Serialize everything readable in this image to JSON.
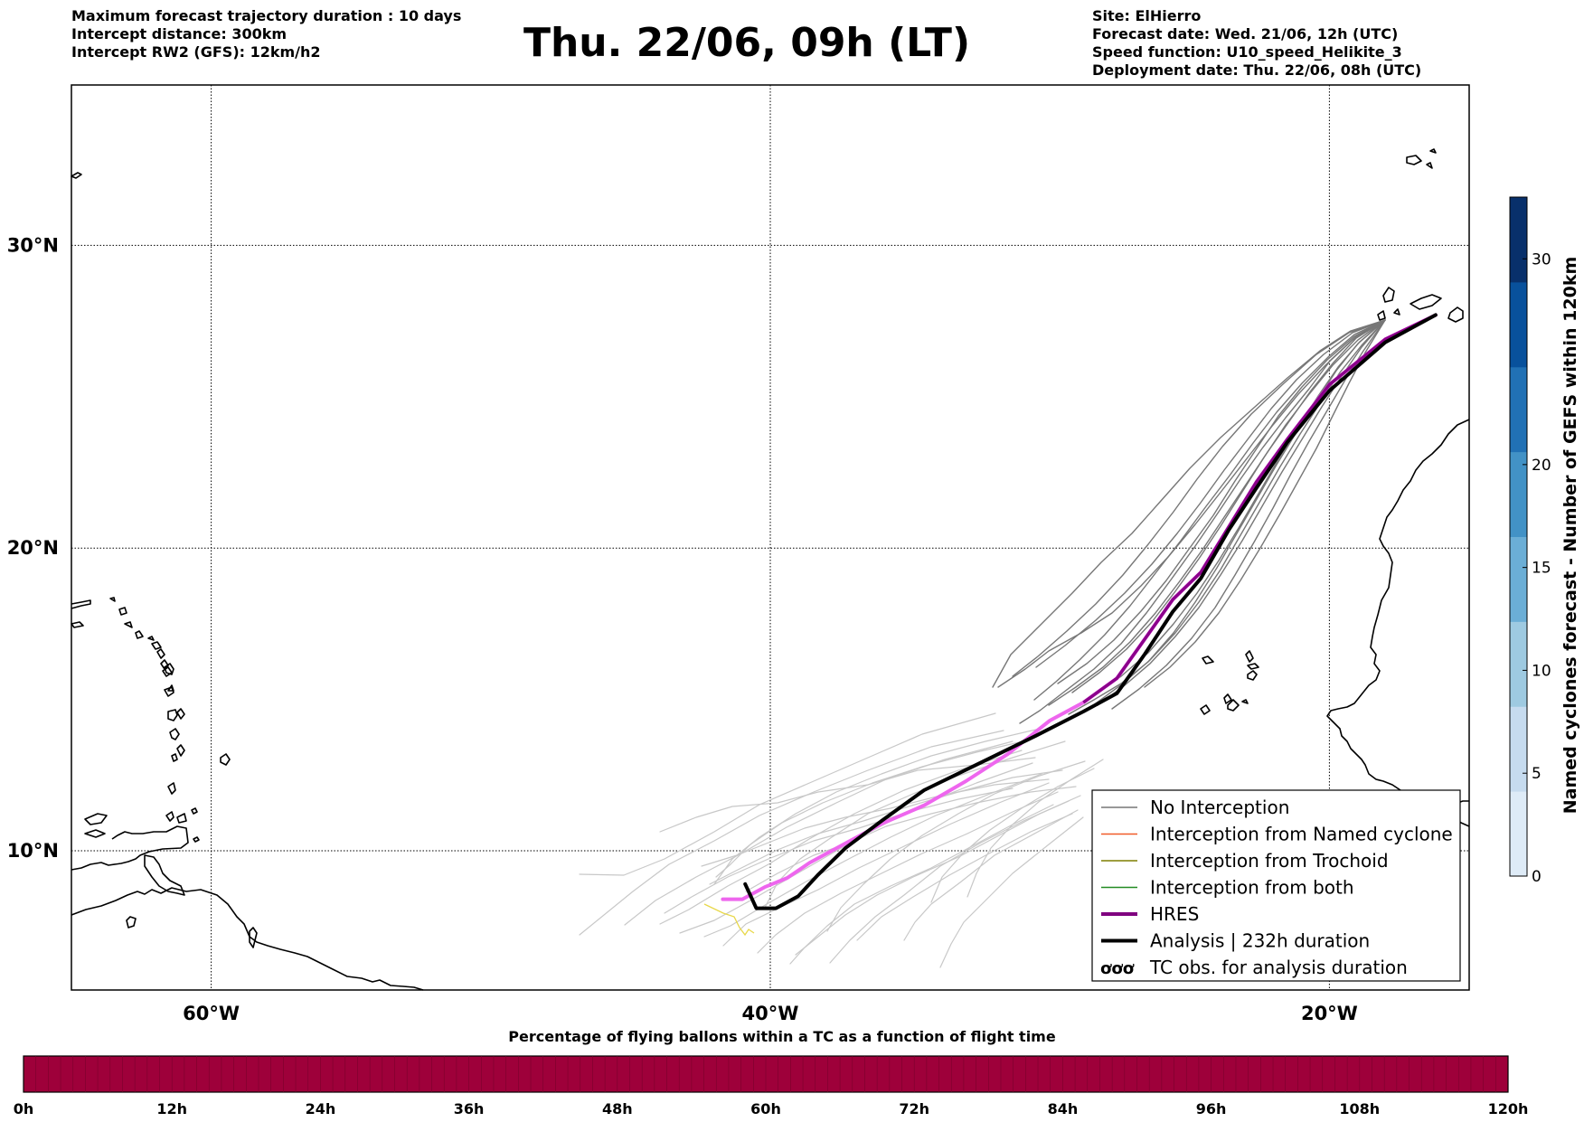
{
  "header": {
    "left_lines": [
      "Maximum forecast trajectory duration : 10 days",
      "Intercept distance: 300km",
      "Intercept RW2 (GFS):  12km/h2"
    ],
    "title": "Thu. 22/06, 09h (LT)",
    "right_lines": [
      "Site: ElHierro",
      "Forecast date: Wed. 21/06, 12h (UTC)",
      "Speed function: U10_speed_Helikite_3",
      "Deployment date: Thu. 22/06, 08h (UTC)"
    ]
  },
  "map": {
    "lat_labels": [
      "30°N",
      "20°N",
      "10°N"
    ],
    "lon_labels": [
      "60°W",
      "40°W",
      "20°W"
    ],
    "lat_values": [
      30,
      20,
      10
    ],
    "lon_values": [
      -60,
      -40,
      -20
    ],
    "extent": {
      "lon_min": -65,
      "lon_max": -15,
      "lat_min": 5.4,
      "lat_max": 35.3
    },
    "colors": {
      "no_interception": "#777777",
      "ensemble_light": "#c8c8c8",
      "hres": "#ee66ee",
      "hres_dark": "#8b008b",
      "analysis": "#000000",
      "yellow": "#e8d84a"
    },
    "analysis_track": [
      [
        -16.2,
        27.7
      ],
      [
        -18,
        26.8
      ],
      [
        -20,
        25.2
      ],
      [
        -21.5,
        23.5
      ],
      [
        -22.6,
        22
      ],
      [
        -23.6,
        20.6
      ],
      [
        -24.6,
        19
      ],
      [
        -25.6,
        17.9
      ],
      [
        -26.6,
        16.5
      ],
      [
        -27.6,
        15.2
      ],
      [
        -28.8,
        14.6
      ],
      [
        -30.5,
        13.8
      ],
      [
        -32.5,
        12.9
      ],
      [
        -34.5,
        12
      ],
      [
        -36,
        11
      ],
      [
        -37.3,
        10.1
      ],
      [
        -38.3,
        9.2
      ],
      [
        -39,
        8.5
      ],
      [
        -39.8,
        8.1
      ],
      [
        -40.5,
        8.1
      ],
      [
        -40.7,
        8.5
      ],
      [
        -40.9,
        8.9
      ]
    ],
    "hres_track": [
      [
        -16.2,
        27.7
      ],
      [
        -18,
        26.9
      ],
      [
        -20,
        25.4
      ],
      [
        -21.5,
        23.6
      ],
      [
        -22.6,
        22.2
      ],
      [
        -23.6,
        20.7
      ],
      [
        -24.6,
        19.2
      ],
      [
        -25.6,
        18.3
      ],
      [
        -26.6,
        17
      ],
      [
        -27.6,
        15.7
      ],
      [
        -28.8,
        14.9
      ],
      [
        -30,
        14.3
      ],
      [
        -31.5,
        13.2
      ],
      [
        -33,
        12.3
      ],
      [
        -34.5,
        11.5
      ],
      [
        -36,
        10.9
      ],
      [
        -37.4,
        10.2
      ],
      [
        -38.6,
        9.6
      ],
      [
        -39.4,
        9.1
      ],
      [
        -40.2,
        8.8
      ],
      [
        -41,
        8.4
      ],
      [
        -41.7,
        8.4
      ]
    ]
  },
  "legend": {
    "items": [
      {
        "label": "No Interception",
        "color": "#777777",
        "width": 1.5,
        "kind": "line"
      },
      {
        "label": "Interception from Named cyclone",
        "color": "#f05a28",
        "width": 1.5,
        "kind": "line"
      },
      {
        "label": "Interception from Trochoid",
        "color": "#7f7f00",
        "width": 1.5,
        "kind": "line"
      },
      {
        "label": "Interception from both",
        "color": "#228b22",
        "width": 1.5,
        "kind": "line"
      },
      {
        "label": "HRES",
        "color": "#800080",
        "width": 4,
        "kind": "line"
      },
      {
        "label": "Analysis | 232h duration",
        "color": "#000000",
        "width": 4,
        "kind": "line"
      },
      {
        "label": "TC obs. for analysis duration",
        "symbol": "ಠಠಠ",
        "kind": "symbol"
      }
    ]
  },
  "colorbar_right": {
    "label": "Named cyclones forecast - Number of GEFS within 120km",
    "ticks": [
      0,
      5,
      10,
      15,
      20,
      30
    ],
    "max": 33,
    "colors": [
      "#deebf7",
      "#c6dbef",
      "#9ecae1",
      "#6baed6",
      "#4292c6",
      "#2171b5",
      "#08519c",
      "#08306b"
    ]
  },
  "colorbar_bottom": {
    "title": "Percentage of flying ballons within a TC as a function of flight time",
    "ticks": [
      "0h",
      "12h",
      "24h",
      "36h",
      "48h",
      "60h",
      "72h",
      "84h",
      "96h",
      "108h",
      "120h"
    ],
    "color": "#9e003a"
  }
}
